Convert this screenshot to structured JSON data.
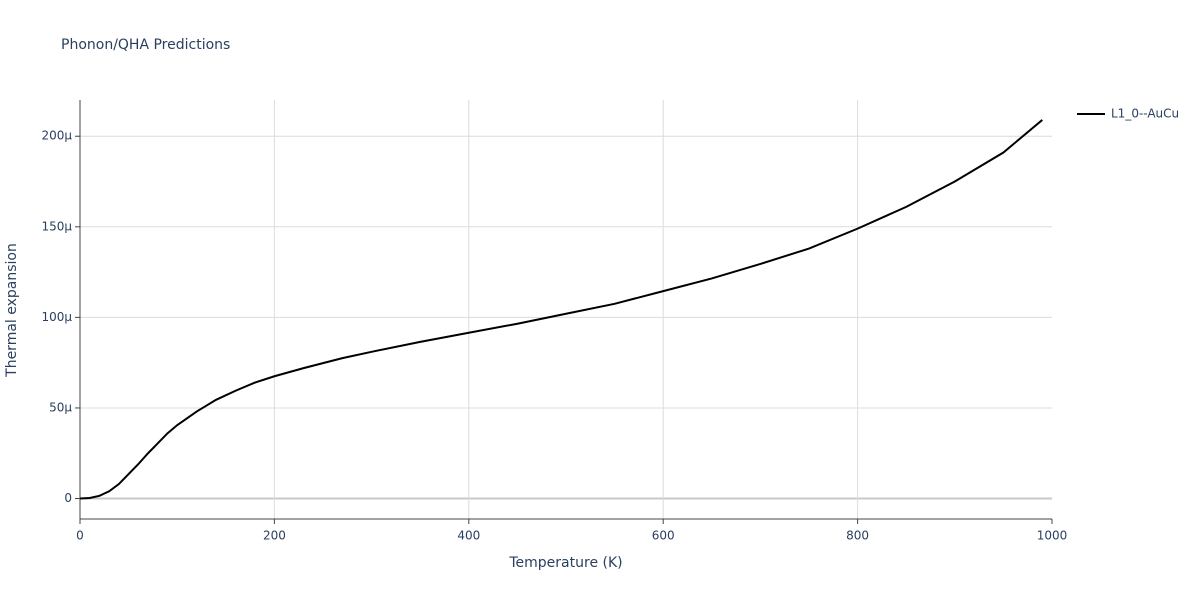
{
  "chart_data": {
    "type": "line",
    "title": "Phonon/QHA Predictions",
    "x_label": "Temperature (K)",
    "y_label": "Thermal expansion",
    "x": [
      0,
      10,
      20,
      30,
      40,
      50,
      60,
      70,
      80,
      90,
      100,
      120,
      140,
      160,
      180,
      200,
      230,
      270,
      300,
      350,
      400,
      450,
      500,
      550,
      600,
      650,
      700,
      750,
      800,
      850,
      900,
      950,
      990
    ],
    "series": [
      {
        "name": "L1_0--AuCu",
        "color": "#000000",
        "values": [
          0,
          3e-07,
          1.5e-06,
          4e-06,
          8e-06,
          1.35e-05,
          1.9e-05,
          2.5e-05,
          3.05e-05,
          3.6e-05,
          4.05e-05,
          4.8e-05,
          5.45e-05,
          5.95e-05,
          6.4e-05,
          6.75e-05,
          7.2e-05,
          7.75e-05,
          8.1e-05,
          8.65e-05,
          9.15e-05,
          9.65e-05,
          0.000102,
          0.0001075,
          0.0001145,
          0.0001215,
          0.0001295,
          0.000138,
          0.000149,
          0.000161,
          0.000175,
          0.000191,
          0.000209
        ]
      }
    ],
    "xlim": [
      0,
      1000
    ],
    "xticks": [
      0,
      200,
      400,
      600,
      800,
      1000
    ],
    "ylim": [
      -1.13e-05,
      0.00022
    ],
    "yticks": [
      0,
      {
        "value": 5e-05,
        "label": "50µ"
      },
      {
        "value": 0.0001,
        "label": "100µ"
      },
      {
        "value": 0.00015,
        "label": "150µ"
      },
      {
        "value": 0.0002,
        "label": "200µ"
      }
    ],
    "grid": true,
    "legend": "right"
  }
}
